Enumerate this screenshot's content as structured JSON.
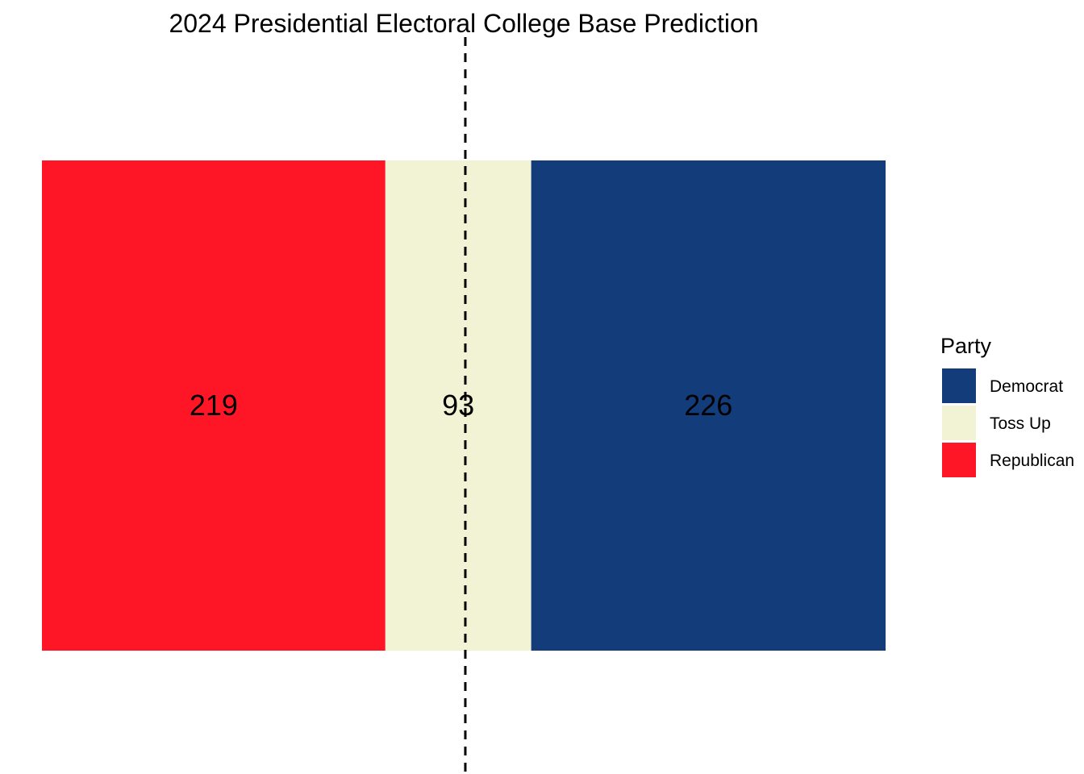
{
  "chart_data": {
    "type": "bar",
    "orientation": "horizontal-stacked",
    "title": "2024 Presidential Electoral College Base Prediction",
    "segments": [
      {
        "name": "Republican",
        "value": 219,
        "color": "#FF1626"
      },
      {
        "name": "Toss Up",
        "value": 93,
        "color": "#F2F2D4"
      },
      {
        "name": "Democrat",
        "value": 226,
        "color": "#133C7A"
      }
    ],
    "total": 538,
    "threshold": 270,
    "threshold_style": "dashed",
    "legend": {
      "title": "Party",
      "placement": "right",
      "items": [
        {
          "name": "Democrat",
          "color": "#133C7A"
        },
        {
          "name": "Toss Up",
          "color": "#F2F2D4"
        },
        {
          "name": "Republican",
          "color": "#FF1626"
        }
      ]
    },
    "grid": false,
    "xlabel": "",
    "ylabel": ""
  }
}
